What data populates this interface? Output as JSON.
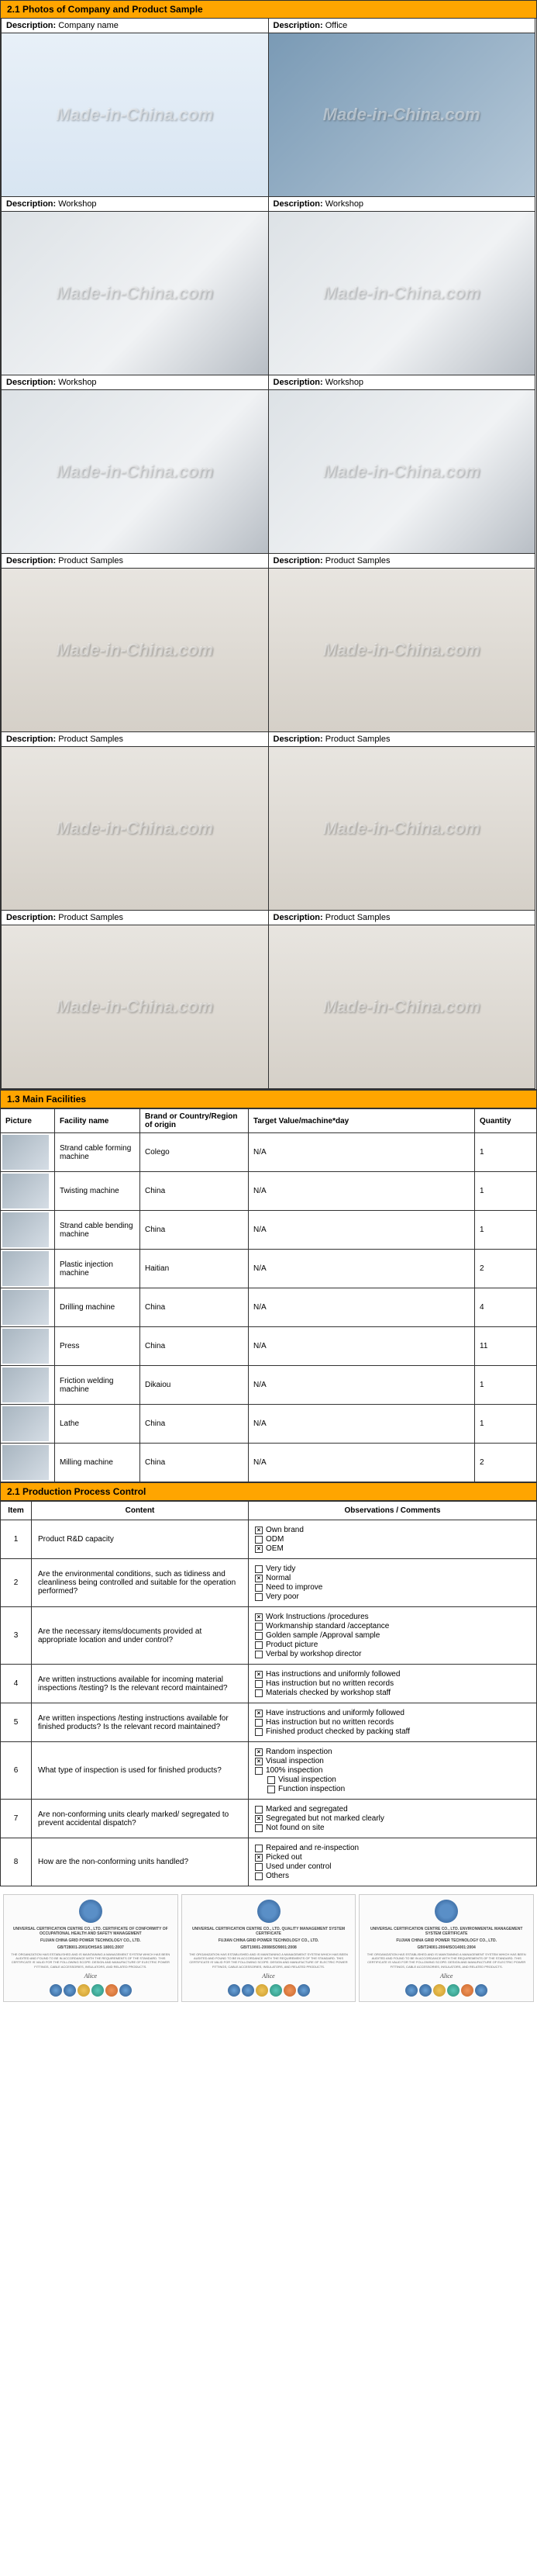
{
  "section21": {
    "title": "2.1 Photos of Company and Product Sample",
    "label_prefix": "Description: ",
    "watermark": "Made-in-China.com",
    "photos": [
      {
        "label": "Company name",
        "style": "logo-photo"
      },
      {
        "label": "Office",
        "style": "office-photo"
      },
      {
        "label": "Workshop",
        "style": "workshop-photo"
      },
      {
        "label": "Workshop",
        "style": "workshop-photo"
      },
      {
        "label": "Workshop",
        "style": "workshop-photo"
      },
      {
        "label": "Workshop",
        "style": "workshop-photo"
      },
      {
        "label": "Product Samples",
        "style": "sample-photo"
      },
      {
        "label": "Product Samples",
        "style": "sample-photo"
      },
      {
        "label": "Product Samples",
        "style": "sample-photo"
      },
      {
        "label": "Product Samples",
        "style": "sample-photo"
      },
      {
        "label": "Product Samples",
        "style": "sample-photo"
      },
      {
        "label": "Product Samples",
        "style": "sample-photo"
      }
    ]
  },
  "section13": {
    "title": "1.3 Main Facilities",
    "headers": [
      "Picture",
      "Facility name",
      "Brand or Country/Region of origin",
      "Target Value/machine*day",
      "Quantity"
    ],
    "rows": [
      {
        "name": "Strand cable forming machine",
        "brand": "Colego",
        "target": "N/A",
        "qty": "1"
      },
      {
        "name": "Twisting machine",
        "brand": "China",
        "target": "N/A",
        "qty": "1"
      },
      {
        "name": "Strand cable bending machine",
        "brand": "China",
        "target": "N/A",
        "qty": "1"
      },
      {
        "name": "Plastic injection machine",
        "brand": "Haitian",
        "target": "N/A",
        "qty": "2"
      },
      {
        "name": "Drilling machine",
        "brand": "China",
        "target": "N/A",
        "qty": "4"
      },
      {
        "name": "Press",
        "brand": "China",
        "target": "N/A",
        "qty": "11"
      },
      {
        "name": "Friction welding machine",
        "brand": "Dikaiou",
        "target": "N/A",
        "qty": "1"
      },
      {
        "name": "Lathe",
        "brand": "China",
        "target": "N/A",
        "qty": "1"
      },
      {
        "name": "Milling machine",
        "brand": "China",
        "target": "N/A",
        "qty": "2"
      }
    ]
  },
  "section_ppc": {
    "title": "2.1 Production Process Control",
    "headers": [
      "Item",
      "Content",
      "Observations / Comments"
    ],
    "rows": [
      {
        "item": "1",
        "content": "Product R&D capacity",
        "options": [
          {
            "label": "Own brand",
            "checked": true
          },
          {
            "label": "ODM",
            "checked": false
          },
          {
            "label": "OEM",
            "checked": true
          }
        ]
      },
      {
        "item": "2",
        "content": "Are the environmental conditions, such as tidiness and cleanliness being controlled and suitable for the operation performed?",
        "options": [
          {
            "label": "Very tidy",
            "checked": false
          },
          {
            "label": "Normal",
            "checked": true
          },
          {
            "label": "Need to improve",
            "checked": false
          },
          {
            "label": "Very poor",
            "checked": false
          }
        ]
      },
      {
        "item": "3",
        "content": "Are the necessary items/documents provided at appropriate location and under control?",
        "options": [
          {
            "label": "Work Instructions /procedures",
            "checked": true
          },
          {
            "label": "Workmanship standard /acceptance",
            "checked": false
          },
          {
            "label": "Golden sample /Approval sample",
            "checked": false
          },
          {
            "label": "Product picture",
            "checked": false
          },
          {
            "label": "Verbal by workshop director",
            "checked": false
          }
        ]
      },
      {
        "item": "4",
        "content": "Are written instructions available for incoming material inspections /testing? Is the relevant record maintained?",
        "options": [
          {
            "label": "Has instructions and uniformly followed",
            "checked": true
          },
          {
            "label": "Has instruction but no written records",
            "checked": false
          },
          {
            "label": "Materials checked by workshop staff",
            "checked": false
          }
        ]
      },
      {
        "item": "5",
        "content": "Are written inspections /testing instructions available for finished products? Is the relevant record maintained?",
        "options": [
          {
            "label": "Have instructions and uniformly followed",
            "checked": true
          },
          {
            "label": "Has instruction but no written records",
            "checked": false
          },
          {
            "label": "Finished product checked by packing staff",
            "checked": false
          }
        ]
      },
      {
        "item": "6",
        "content": "What type of inspection is used for finished products?",
        "options": [
          {
            "label": "Random inspection",
            "checked": true
          },
          {
            "label": "Visual inspection",
            "checked": true
          },
          {
            "label": "100% inspection",
            "checked": false
          },
          {
            "label": "Visual inspection",
            "checked": false,
            "indent": true
          },
          {
            "label": "Function inspection",
            "checked": false,
            "indent": true
          }
        ]
      },
      {
        "item": "7",
        "content": "Are non-conforming units clearly marked/ segregated to prevent accidental dispatch?",
        "options": [
          {
            "label": "Marked and segregated",
            "checked": false
          },
          {
            "label": "Segregated but not marked clearly",
            "checked": true
          },
          {
            "label": "Not found on site",
            "checked": false
          }
        ]
      },
      {
        "item": "8",
        "content": "How are the non-conforming units handled?",
        "options": [
          {
            "label": "Repaired and re-inspection",
            "checked": false
          },
          {
            "label": "Picked out",
            "checked": true
          },
          {
            "label": "Used under control",
            "checked": false
          },
          {
            "label": "Others",
            "checked": false
          }
        ]
      }
    ]
  },
  "certs": {
    "items": [
      {
        "org": "UNIVERSAL CERTIFICATION CENTRE CO., LTD. CERTIFICATE OF CONFORMITY OF OCCUPATIONAL HEALTH AND SAFETY MANAGEMENT",
        "company": "FUJIAN CHINA GRID POWER TECHNOLOGY CO., LTD.",
        "std": "GB/T28001-2001/OHSAS 18001:2007",
        "sig": "Alice"
      },
      {
        "org": "UNIVERSAL CERTIFICATION CENTRE CO., LTD. QUALITY MANAGEMENT SYSTEM CERTIFICATE",
        "company": "FUJIAN CHINA GRID POWER TECHNOLOGY CO., LTD.",
        "std": "GB/T19001-2008/ISO9001:2008",
        "sig": "Alice"
      },
      {
        "org": "UNIVERSAL CERTIFICATION CENTRE CO., LTD. ENVIRONMENTAL MANAGEMENT SYSTEM CERTIFICATE",
        "company": "FUJIAN CHINA GRID POWER TECHNOLOGY CO., LTD.",
        "std": "GB/T24001-2004/ISO14001:2004",
        "sig": "Alice"
      }
    ],
    "body_text": "THE ORGANIZATION HAS ESTABLISHED AND IS MAINTAINING A MANAGEMENT SYSTEM WHICH HAS BEEN AUDITED AND FOUND TO BE IN ACCORDANCE WITH THE REQUIREMENTS OF THE STANDARD. THIS CERTIFICATE IS VALID FOR THE FOLLOWING SCOPE: DESIGN AND MANUFACTURE OF ELECTRIC POWER FITTINGS, CABLE ACCESSORIES, INSULATORS, AND RELATED PRODUCTS."
  },
  "colors": {
    "header_bg": "#FFA500",
    "border": "#333333",
    "text": "#000000"
  }
}
